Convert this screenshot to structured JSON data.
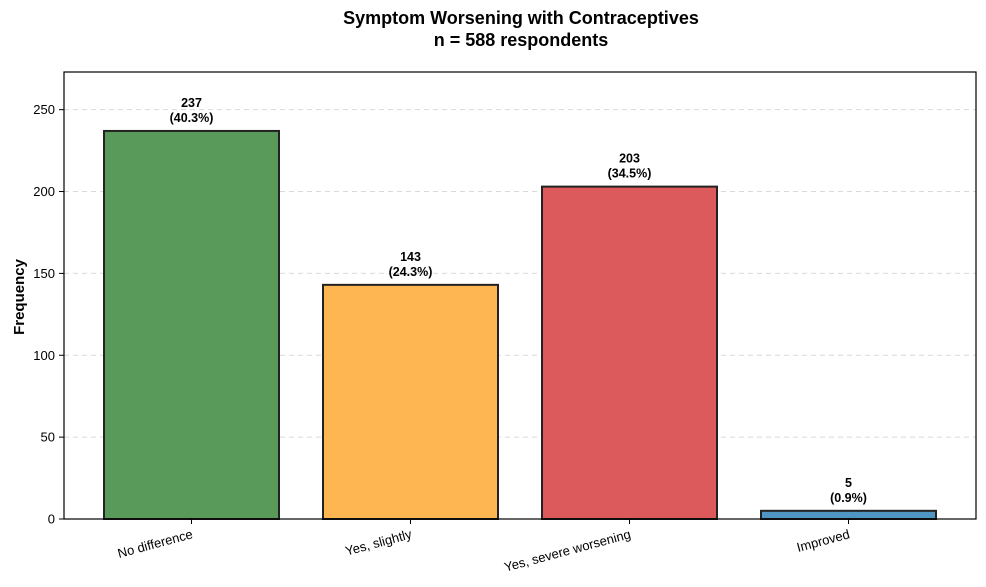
{
  "chart_data": {
    "type": "bar",
    "title": "Symptom Worsening with Contraceptives",
    "subtitle": "n = 588 respondents",
    "xlabel": "",
    "ylabel": "Frequency",
    "ylim": [
      0,
      273
    ],
    "yticks": [
      0,
      50,
      100,
      150,
      200,
      250
    ],
    "grid": "y-dashed",
    "categories": [
      "No difference",
      "Yes, slightly",
      "Yes, severe worsening",
      "Improved"
    ],
    "values": [
      237,
      143,
      203,
      5
    ],
    "percent_labels": [
      "(40.3%)",
      "(24.3%)",
      "(34.5%)",
      "(0.9%)"
    ],
    "colors": [
      "#599a5a",
      "#fdb651",
      "#dc5a5b",
      "#4f97c2"
    ]
  }
}
